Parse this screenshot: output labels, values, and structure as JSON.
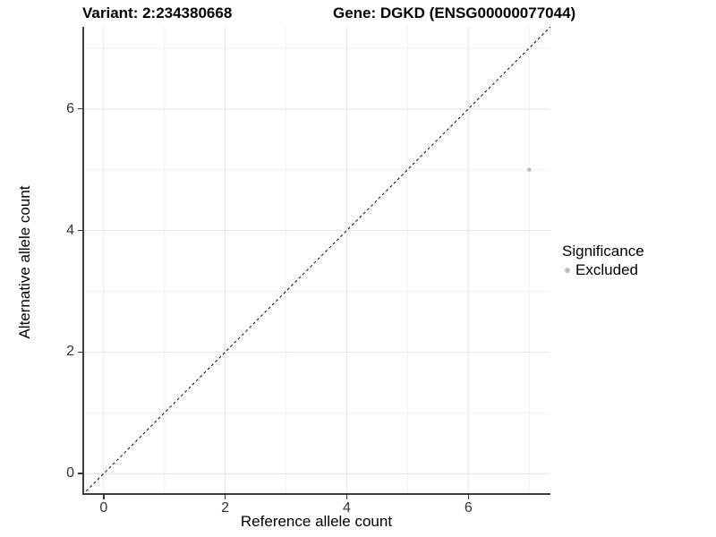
{
  "figure": {
    "title_left": "Variant: 2:234380668",
    "title_right": "Gene: DGKD (ENSG00000077044)"
  },
  "chart_data": {
    "type": "scatter",
    "title": "Variant: 2:234380668  /  Gene: DGKD (ENSG00000077044)",
    "xlabel": "Reference allele count",
    "ylabel": "Alternative allele count",
    "xlim": [
      -0.35,
      7.35
    ],
    "ylim": [
      -0.35,
      7.35
    ],
    "x_ticks": [
      0,
      2,
      4,
      6
    ],
    "y_ticks": [
      0,
      2,
      4,
      6
    ],
    "x_minor_gridlines": [
      1,
      3,
      5,
      7
    ],
    "y_minor_gridlines": [
      1,
      3,
      5,
      7
    ],
    "grid": true,
    "series": [
      {
        "name": "Excluded",
        "color": "#bdbdbd",
        "points": [
          {
            "x": 7,
            "y": 5
          }
        ]
      }
    ],
    "reference_line": {
      "slope": 1,
      "intercept": 0,
      "style": "dashed",
      "color": "#000000"
    },
    "legend": {
      "title": "Significance",
      "position": "right",
      "entries": [
        {
          "label": "Excluded",
          "color": "#bdbdbd"
        }
      ]
    }
  },
  "colors": {
    "background": "#ffffff",
    "grid_major": "#e6e6e6",
    "grid_minor": "#f1f1f1",
    "axis_line": "#3c3c3c",
    "tick_label": "#333333"
  }
}
